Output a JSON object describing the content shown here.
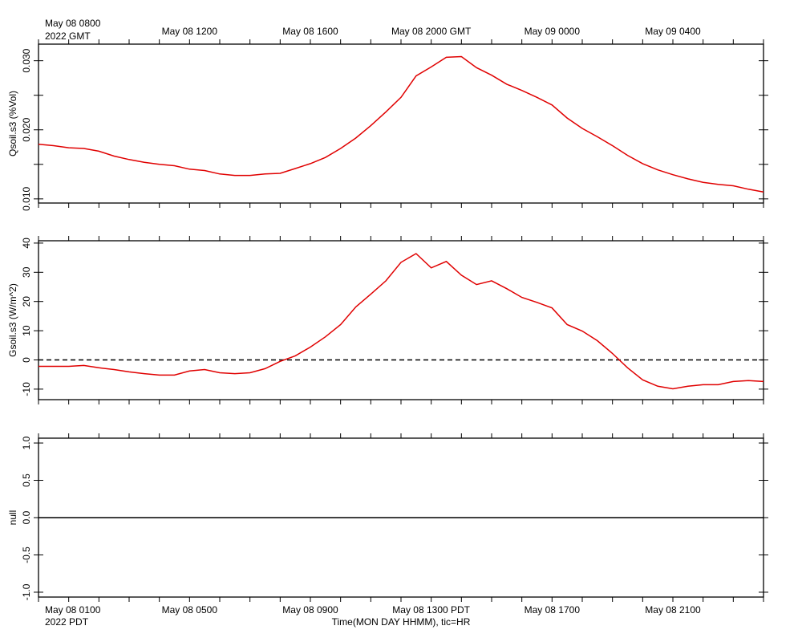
{
  "time_axis": {
    "xlim": [
      0,
      24
    ],
    "hour_ticks": [
      0,
      1,
      2,
      3,
      4,
      5,
      6,
      7,
      8,
      9,
      10,
      11,
      12,
      13,
      14,
      15,
      16,
      17,
      18,
      19,
      20,
      21,
      22,
      23,
      24
    ],
    "top_labels": [
      {
        "value": 1,
        "label": "May 08 0800"
      },
      {
        "value": 5,
        "label": "May 08 1200"
      },
      {
        "value": 9,
        "label": "May 08 1600"
      },
      {
        "value": 13,
        "label": "May 08 2000 GMT"
      },
      {
        "value": 17,
        "label": "May 09 0000"
      },
      {
        "value": 21,
        "label": "May 09 0400"
      }
    ],
    "top_year": "2022 GMT",
    "bottom_labels": [
      {
        "value": 1,
        "label": "May 08 0100"
      },
      {
        "value": 5,
        "label": "May 08 0500"
      },
      {
        "value": 9,
        "label": "May 08 0900"
      },
      {
        "value": 13,
        "label": "May 08 1300 PDT"
      },
      {
        "value": 17,
        "label": "May 08 1700"
      },
      {
        "value": 21,
        "label": "May 08 2100"
      }
    ],
    "bottom_year": "2022 PDT",
    "xlabel": "Time(MON DAY HHMM), tic=HR"
  },
  "chart_data": [
    {
      "type": "line",
      "ylabel": "Qsoil.s3 (%Vol)",
      "ylim": [
        0.0094,
        0.0324
      ],
      "yticks": [
        {
          "value": 0.01,
          "label": "0.010"
        },
        {
          "value": 0.02,
          "label": "0.020"
        },
        {
          "value": 0.03,
          "label": "0.030"
        }
      ],
      "yticks_minor": [
        0.015,
        0.025
      ],
      "x": [
        0,
        0.5,
        1,
        1.5,
        2,
        2.5,
        3,
        3.5,
        4,
        4.5,
        5,
        5.5,
        6,
        6.5,
        7,
        7.5,
        8,
        8.5,
        9,
        9.5,
        10,
        10.5,
        11,
        11.5,
        12,
        12.5,
        13,
        13.5,
        14,
        14.5,
        15,
        15.5,
        16,
        16.5,
        17,
        17.5,
        18,
        18.5,
        19,
        19.5,
        20,
        20.5,
        21,
        21.5,
        22,
        22.5,
        23,
        23.5,
        24
      ],
      "series": [
        {
          "color": "#e00000",
          "values": [
            0.0179,
            0.0177,
            0.0174,
            0.0173,
            0.0169,
            0.0162,
            0.0157,
            0.0153,
            0.015,
            0.0148,
            0.0143,
            0.0141,
            0.0136,
            0.0134,
            0.0134,
            0.0136,
            0.0137,
            0.0144,
            0.0151,
            0.016,
            0.0173,
            0.0188,
            0.0206,
            0.0226,
            0.0247,
            0.0278,
            0.0291,
            0.0305,
            0.0306,
            0.029,
            0.0279,
            0.0266,
            0.0257,
            0.0247,
            0.0236,
            0.0217,
            0.0202,
            0.019,
            0.0177,
            0.0163,
            0.0151,
            0.0142,
            0.0135,
            0.0129,
            0.0124,
            0.0121,
            0.0119,
            0.0114,
            0.011
          ]
        }
      ]
    },
    {
      "type": "line",
      "ylabel": "Gsoil.s3 (W/m^2)",
      "ylim": [
        -13.6,
        40.8
      ],
      "yticks": [
        -10,
        0,
        10,
        20,
        30,
        40
      ],
      "hline": {
        "value": 0,
        "dash": true
      },
      "x": [
        0,
        0.5,
        1,
        1.5,
        2,
        2.5,
        3,
        3.5,
        4,
        4.5,
        5,
        5.5,
        6,
        6.5,
        7,
        7.5,
        8,
        8.5,
        9,
        9.5,
        10,
        10.5,
        11,
        11.5,
        12,
        12.5,
        13,
        13.5,
        14,
        14.5,
        15,
        15.5,
        16,
        16.5,
        17,
        17.5,
        18,
        18.5,
        19,
        19.5,
        20,
        20.5,
        21,
        21.5,
        22,
        22.5,
        23,
        23.5,
        24
      ],
      "series": [
        {
          "color": "#e00000",
          "values": [
            -2.2,
            -2.2,
            -2.2,
            -1.9,
            -2.7,
            -3.3,
            -4.1,
            -4.7,
            -5.2,
            -5.2,
            -3.8,
            -3.3,
            -4.4,
            -4.7,
            -4.4,
            -3.0,
            -0.5,
            1.4,
            4.4,
            7.9,
            12.1,
            18.1,
            22.5,
            27.1,
            33.4,
            36.4,
            31.5,
            33.7,
            29.0,
            25.8,
            27.1,
            24.4,
            21.4,
            19.7,
            17.8,
            12.1,
            9.9,
            6.6,
            2.2,
            -2.7,
            -6.8,
            -9.0,
            -9.9,
            -9.0,
            -8.5,
            -8.5,
            -7.4,
            -7.1,
            -7.4
          ]
        }
      ]
    },
    {
      "type": "line",
      "ylabel": "null",
      "ylim": [
        -1.065,
        1.065
      ],
      "yticks": [
        {
          "value": -1,
          "label": "-1.0"
        },
        {
          "value": -0.5,
          "label": "-0.5"
        },
        {
          "value": 0,
          "label": "0.0"
        },
        {
          "value": 0.5,
          "label": "0.5"
        },
        {
          "value": 1,
          "label": "1.0"
        }
      ],
      "hline": {
        "value": 0,
        "dash": false
      },
      "series": []
    }
  ]
}
